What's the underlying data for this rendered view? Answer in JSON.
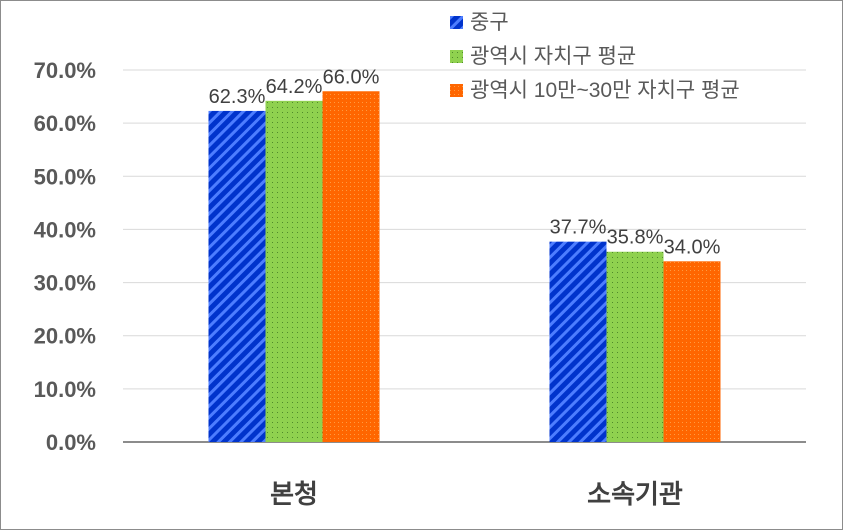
{
  "chart_data": {
    "type": "bar",
    "title": "",
    "xlabel": "",
    "ylabel": "",
    "categories": [
      "본청",
      "소속기관"
    ],
    "series": [
      {
        "name": "중구",
        "values": [
          62.3,
          37.7
        ],
        "labels": [
          "62.3%",
          "37.7%"
        ],
        "color": "#0033cc",
        "pattern": "diagonal-stripes"
      },
      {
        "name": "광역시 자치구 평균",
        "values": [
          64.2,
          35.8
        ],
        "labels": [
          "64.2%",
          "35.8%"
        ],
        "color": "#7dc242",
        "pattern": "dots"
      },
      {
        "name": "광역시 10만~30만 자치구 평균",
        "values": [
          66.0,
          34.0
        ],
        "labels": [
          "66.0%",
          "34.0%"
        ],
        "color": "#ff6600",
        "pattern": "dots"
      }
    ],
    "ylim": [
      0,
      70
    ],
    "yticks": [
      "0.0%",
      "10.0%",
      "20.0%",
      "30.0%",
      "40.0%",
      "50.0%",
      "60.0%",
      "70.0%"
    ],
    "grid": true,
    "legend": "top-right"
  }
}
